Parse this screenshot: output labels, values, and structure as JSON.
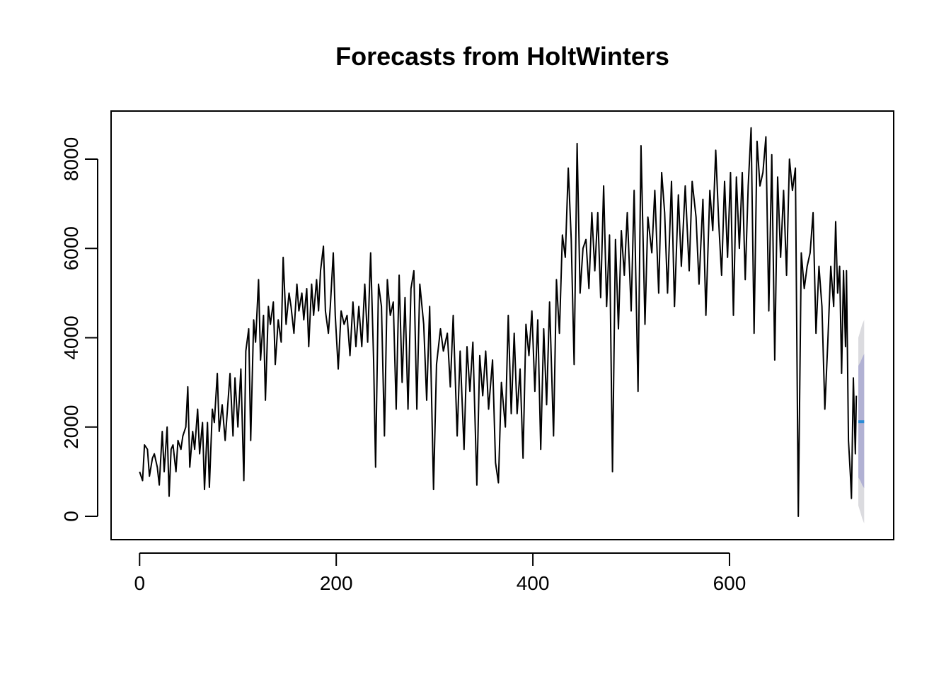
{
  "chart_data": {
    "type": "line",
    "title": "Forecasts from HoltWinters",
    "color": "#000000",
    "x": [
      0,
      3,
      5,
      8,
      10,
      13,
      15,
      18,
      20,
      23,
      25,
      28,
      30,
      32,
      34,
      37,
      39,
      42,
      44,
      47,
      49,
      51,
      54,
      56,
      59,
      61,
      64,
      66,
      69,
      71,
      74,
      76,
      79,
      81,
      84,
      87,
      89,
      92,
      95,
      97,
      100,
      103,
      106,
      108,
      111,
      113,
      116,
      118,
      121,
      123,
      126,
      128,
      131,
      133,
      136,
      138,
      141,
      144,
      146,
      149,
      152,
      154,
      157,
      160,
      162,
      165,
      167,
      170,
      172,
      175,
      177,
      180,
      182,
      184,
      187,
      189,
      192,
      194,
      197,
      199,
      202,
      205,
      208,
      211,
      214,
      217,
      220,
      223,
      226,
      229,
      232,
      235,
      238,
      240,
      243,
      246,
      249,
      252,
      255,
      258,
      261,
      264,
      267,
      270,
      273,
      276,
      279,
      282,
      285,
      289,
      292,
      295,
      299,
      302,
      306,
      309,
      313,
      316,
      319,
      323,
      326,
      330,
      333,
      336,
      339,
      343,
      346,
      349,
      352,
      355,
      359,
      362,
      365,
      368,
      372,
      375,
      378,
      381,
      384,
      387,
      390,
      393,
      396,
      399,
      402,
      405,
      408,
      411,
      414,
      417,
      421,
      424,
      427,
      430,
      433,
      436,
      439,
      442,
      445,
      448,
      451,
      454,
      457,
      460,
      463,
      466,
      469,
      472,
      475,
      478,
      481,
      484,
      487,
      490,
      493,
      496,
      500,
      503,
      507,
      510,
      514,
      517,
      521,
      524,
      528,
      531,
      534,
      537,
      541,
      544,
      548,
      551,
      555,
      559,
      562,
      566,
      569,
      573,
      576,
      580,
      583,
      586,
      589,
      592,
      595,
      598,
      601,
      604,
      607,
      610,
      613,
      616,
      619,
      622,
      625,
      628,
      631,
      634,
      637,
      640,
      643,
      646,
      649,
      652,
      655,
      658,
      661,
      664,
      667,
      670,
      673,
      676,
      679,
      682,
      685,
      688,
      691,
      694,
      697,
      700,
      703,
      706,
      708,
      710,
      712,
      714,
      716,
      718,
      719,
      721,
      723,
      724,
      726,
      728,
      729
    ],
    "values": [
      1000,
      800,
      1600,
      1500,
      900,
      1300,
      1400,
      1100,
      700,
      1900,
      1000,
      2000,
      450,
      1500,
      1600,
      1000,
      1700,
      1500,
      1800,
      2000,
      2900,
      1100,
      1900,
      1500,
      2400,
      1400,
      2100,
      600,
      2100,
      650,
      2400,
      2100,
      3200,
      1900,
      2500,
      1700,
      2300,
      3200,
      1800,
      3100,
      2000,
      3300,
      800,
      3700,
      4200,
      1700,
      4400,
      3900,
      5300,
      3500,
      4500,
      2600,
      4700,
      4300,
      4800,
      3400,
      4400,
      3900,
      5800,
      4300,
      5000,
      4700,
      4100,
      5200,
      4600,
      5000,
      4400,
      5100,
      3800,
      5200,
      4500,
      5300,
      4600,
      5500,
      6050,
      4600,
      4100,
      4700,
      5900,
      4500,
      3300,
      4600,
      4300,
      4500,
      3600,
      4800,
      3800,
      4700,
      3800,
      5200,
      3900,
      5900,
      3500,
      1100,
      5200,
      4700,
      1800,
      5300,
      4500,
      4800,
      2400,
      5400,
      3000,
      4900,
      2400,
      5100,
      5500,
      2400,
      5200,
      4300,
      2600,
      4700,
      600,
      3400,
      4200,
      3700,
      4100,
      2900,
      4500,
      1800,
      3700,
      1500,
      3800,
      2800,
      3900,
      700,
      3600,
      2700,
      3700,
      2400,
      3500,
      1200,
      750,
      3000,
      2000,
      4500,
      2300,
      4100,
      2300,
      3300,
      1300,
      4300,
      3600,
      4600,
      2800,
      4400,
      1500,
      4200,
      2500,
      4800,
      1800,
      5300,
      4100,
      6300,
      5800,
      7800,
      6200,
      3400,
      8350,
      5000,
      6000,
      6200,
      5100,
      6800,
      5500,
      6800,
      4900,
      7400,
      4700,
      6300,
      1000,
      6200,
      4200,
      6400,
      5400,
      6800,
      4600,
      7300,
      2800,
      8300,
      4300,
      6700,
      5900,
      7300,
      5000,
      7700,
      6800,
      5000,
      7500,
      4700,
      7200,
      5600,
      7400,
      5500,
      7500,
      6700,
      5200,
      7100,
      4500,
      7300,
      6400,
      8200,
      6600,
      5400,
      7500,
      5800,
      7700,
      4500,
      7600,
      6000,
      7700,
      5300,
      7400,
      8700,
      4100,
      8400,
      7400,
      7700,
      8500,
      4600,
      8100,
      3500,
      7600,
      5800,
      7300,
      5400,
      8000,
      7300,
      7800,
      0,
      5900,
      5100,
      5600,
      5900,
      6800,
      4100,
      5600,
      4700,
      2400,
      3900,
      5600,
      4700,
      6600,
      5000,
      5600,
      3200,
      5500,
      3800,
      5500,
      1700,
      900,
      400,
      3100,
      1400,
      2700
    ],
    "forecast": {
      "x": [
        731,
        733,
        735,
        737
      ],
      "values": [
        2120,
        2120,
        2120,
        2120
      ],
      "color": "#2b8cd6",
      "band80": {
        "lower": [
          870,
          800,
          700,
          630
        ],
        "upper": [
          3370,
          3450,
          3550,
          3640
        ],
        "color": "#b1b1d3"
      },
      "band95": {
        "lower": [
          240,
          100,
          -50,
          -160
        ],
        "upper": [
          4000,
          4150,
          4300,
          4400
        ],
        "color": "#dbdbdf"
      }
    },
    "xlim": [
      -29,
      767
    ],
    "ylim": [
      -523,
      9077
    ],
    "xticks": [
      0,
      200,
      400,
      600
    ],
    "yticks": [
      0,
      2000,
      4000,
      6000,
      8000
    ]
  }
}
